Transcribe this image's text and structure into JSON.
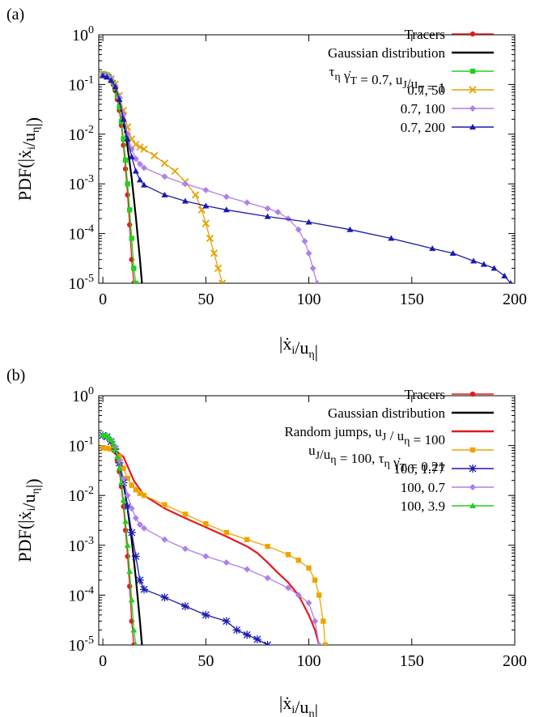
{
  "panels": [
    {
      "panel_label": "(a)",
      "ylabel": "PDF(|ẋi/uη|)",
      "xlabel": "|ẋi/uη|",
      "yticks": [
        "10-5",
        "10-4",
        "10-3",
        "10-2",
        "10-1",
        "100"
      ],
      "xticks": [
        "0",
        "50",
        "100",
        "150",
        "200"
      ],
      "legend": [
        "Tracers",
        "Gaussian distribution",
        "τη γ̇T = 0.7, uJ/uη = 1",
        "0.7, 50",
        "0.7, 100",
        "0.7, 200"
      ]
    },
    {
      "panel_label": "(b)",
      "ylabel": "PDF(|ẋi/uη|)",
      "xlabel": "|ẋi/uη|",
      "yticks": [
        "10-5",
        "10-4",
        "10-3",
        "10-2",
        "10-1",
        "100"
      ],
      "xticks": [
        "0",
        "50",
        "100",
        "150",
        "200"
      ],
      "legend": [
        "Tracers",
        "Gaussian distribution",
        "Random jumps, uJ / uη = 100",
        "uJ/uη = 100, τη γ̇T = 0.21",
        "100, 1.77",
        "100, 0.7",
        "100, 3.9"
      ]
    }
  ],
  "chart_data": [
    {
      "type": "line",
      "title": "",
      "panel": "(a)",
      "xlabel": "|ẋi/uη|",
      "ylabel": "PDF(|ẋi/uη|)",
      "xlim": [
        -2,
        200
      ],
      "ylim": [
        1e-05,
        1
      ],
      "yscale": "log",
      "grid": false,
      "legend_position": "top-right",
      "series": [
        {
          "name": "Tracers",
          "color": "#e41a1c",
          "marker": "circle",
          "x": [
            0,
            1,
            2,
            3,
            4,
            5,
            6,
            7,
            8,
            9,
            10,
            11,
            12,
            13,
            14,
            15
          ],
          "y": [
            0.16,
            0.155,
            0.15,
            0.14,
            0.12,
            0.1,
            0.075,
            0.05,
            0.03,
            0.015,
            0.006,
            0.002,
            0.0006,
            0.00015,
            3e-05,
            1e-05
          ]
        },
        {
          "name": "Gaussian distribution",
          "color": "#000000",
          "marker": "none",
          "x": [
            0,
            2,
            4,
            6,
            8,
            10,
            12,
            14,
            16,
            18,
            19
          ],
          "y": [
            0.16,
            0.15,
            0.12,
            0.08,
            0.045,
            0.018,
            0.0055,
            0.0013,
            0.00022,
            3e-05,
            1e-05
          ]
        },
        {
          "name": "τη γ̇T = 0.7, uJ/uη = 1",
          "color": "#1fd11f",
          "marker": "square",
          "x": [
            0,
            1,
            2,
            3,
            4,
            5,
            6,
            7,
            8,
            9,
            10,
            11,
            12,
            13,
            14,
            15,
            16
          ],
          "y": [
            0.165,
            0.16,
            0.155,
            0.145,
            0.13,
            0.11,
            0.085,
            0.06,
            0.035,
            0.018,
            0.008,
            0.003,
            0.001,
            0.0003,
            8e-05,
            2e-05,
            1e-05
          ]
        },
        {
          "name": "0.7, 50",
          "color": "#e8a100",
          "marker": "x",
          "x": [
            0,
            2,
            4,
            6,
            8,
            10,
            12,
            14,
            16,
            18,
            20,
            25,
            30,
            35,
            40,
            45,
            48,
            50,
            52,
            54,
            56,
            58
          ],
          "y": [
            0.16,
            0.15,
            0.13,
            0.1,
            0.06,
            0.03,
            0.014,
            0.008,
            0.0062,
            0.0055,
            0.005,
            0.0037,
            0.0026,
            0.0018,
            0.0011,
            0.0006,
            0.0003,
            0.00016,
            8e-05,
            4e-05,
            2e-05,
            1e-05
          ]
        },
        {
          "name": "0.7, 100",
          "color": "#b07fe8",
          "marker": "diamond",
          "x": [
            0,
            2,
            4,
            6,
            8,
            10,
            12,
            14,
            16,
            18,
            20,
            30,
            40,
            50,
            60,
            70,
            80,
            85,
            90,
            95,
            98,
            100,
            102,
            104
          ],
          "y": [
            0.16,
            0.15,
            0.13,
            0.095,
            0.055,
            0.025,
            0.01,
            0.005,
            0.0032,
            0.0025,
            0.0021,
            0.0014,
            0.001,
            0.00075,
            0.00055,
            0.00042,
            0.00032,
            0.00027,
            0.0002,
            0.00012,
            7e-05,
            4e-05,
            2e-05,
            1e-05
          ]
        },
        {
          "name": "0.7, 200",
          "color": "#1a1ab0",
          "marker": "triangle",
          "x": [
            0,
            2,
            4,
            6,
            8,
            10,
            12,
            14,
            16,
            18,
            20,
            30,
            40,
            50,
            60,
            80,
            100,
            120,
            140,
            160,
            170,
            180,
            185,
            190,
            195,
            198
          ],
          "y": [
            0.15,
            0.14,
            0.12,
            0.09,
            0.05,
            0.02,
            0.008,
            0.0035,
            0.0018,
            0.0012,
            0.00095,
            0.0006,
            0.00045,
            0.00036,
            0.0003,
            0.00022,
            0.00017,
            0.00012,
            8e-05,
            5e-05,
            4e-05,
            2.8e-05,
            2.4e-05,
            2e-05,
            1.4e-05,
            1e-05
          ]
        }
      ]
    },
    {
      "type": "line",
      "title": "",
      "panel": "(b)",
      "xlabel": "|ẋi/uη|",
      "ylabel": "PDF(|ẋi/uη|)",
      "xlim": [
        -2,
        200
      ],
      "ylim": [
        1e-05,
        1
      ],
      "yscale": "log",
      "grid": false,
      "legend_position": "top-right",
      "series": [
        {
          "name": "Tracers",
          "color": "#e41a1c",
          "marker": "circle",
          "x": [
            0,
            1,
            2,
            3,
            4,
            5,
            6,
            7,
            8,
            9,
            10,
            11,
            12,
            13,
            14,
            15
          ],
          "y": [
            0.16,
            0.155,
            0.15,
            0.14,
            0.12,
            0.1,
            0.075,
            0.05,
            0.03,
            0.015,
            0.006,
            0.002,
            0.0006,
            0.00015,
            3e-05,
            1e-05
          ]
        },
        {
          "name": "Gaussian distribution",
          "color": "#000000",
          "marker": "none",
          "x": [
            0,
            2,
            4,
            6,
            8,
            10,
            12,
            14,
            16,
            18,
            19
          ],
          "y": [
            0.16,
            0.15,
            0.12,
            0.08,
            0.045,
            0.018,
            0.0055,
            0.0013,
            0.00022,
            3e-05,
            1e-05
          ]
        },
        {
          "name": "Random jumps, uJ / uη = 100",
          "color": "#e41a1c",
          "marker": "none",
          "x": [
            0,
            5,
            10,
            15,
            20,
            30,
            40,
            50,
            60,
            70,
            75,
            80,
            85,
            90,
            95,
            100,
            103,
            105
          ],
          "y": [
            0.09,
            0.085,
            0.06,
            0.02,
            0.01,
            0.0055,
            0.0035,
            0.0023,
            0.0015,
            0.00095,
            0.0007,
            0.00045,
            0.00028,
            0.00018,
            0.0001,
            4e-05,
            2e-05,
            1e-05
          ]
        },
        {
          "name": "uJ/uη = 100, τη γ̇T = 0.21",
          "color": "#f0a300",
          "marker": "square",
          "x": [
            0,
            2,
            4,
            6,
            8,
            10,
            12,
            14,
            16,
            18,
            20,
            30,
            40,
            50,
            60,
            70,
            80,
            90,
            95,
            100,
            103,
            105,
            107,
            108
          ],
          "y": [
            0.09,
            0.088,
            0.085,
            0.08,
            0.06,
            0.035,
            0.022,
            0.016,
            0.013,
            0.011,
            0.01,
            0.0065,
            0.0042,
            0.0027,
            0.0018,
            0.0013,
            0.00095,
            0.00065,
            0.0005,
            0.00035,
            0.0002,
            0.0001,
            3e-05,
            1e-05
          ]
        },
        {
          "name": "100, 1.77",
          "color": "#1a1ab0",
          "marker": "star",
          "x": [
            0,
            2,
            4,
            6,
            8,
            10,
            12,
            14,
            16,
            18,
            20,
            30,
            40,
            50,
            60,
            65,
            70,
            75,
            80
          ],
          "y": [
            0.16,
            0.15,
            0.12,
            0.085,
            0.045,
            0.018,
            0.006,
            0.0018,
            0.0006,
            0.0002,
            0.00013,
            9e-05,
            6e-05,
            4e-05,
            3e-05,
            2e-05,
            1.6e-05,
            1.3e-05,
            1e-05
          ]
        },
        {
          "name": "100, 0.7",
          "color": "#b07fe8",
          "marker": "diamond",
          "x": [
            0,
            2,
            4,
            6,
            8,
            10,
            12,
            14,
            16,
            18,
            20,
            30,
            40,
            50,
            60,
            70,
            80,
            90,
            95,
            100,
            103,
            105
          ],
          "y": [
            0.16,
            0.15,
            0.13,
            0.095,
            0.05,
            0.022,
            0.01,
            0.0055,
            0.0035,
            0.0026,
            0.0022,
            0.0013,
            0.00085,
            0.0006,
            0.00045,
            0.00033,
            0.00022,
            0.00014,
            0.0001,
            7e-05,
            3e-05,
            1e-05
          ]
        },
        {
          "name": "100, 3.9",
          "color": "#1fd11f",
          "marker": "triangle",
          "x": [
            0,
            1,
            2,
            3,
            4,
            5,
            6,
            7,
            8,
            9,
            10,
            11,
            12,
            13,
            14,
            15,
            16
          ],
          "y": [
            0.165,
            0.16,
            0.155,
            0.145,
            0.13,
            0.11,
            0.085,
            0.06,
            0.035,
            0.018,
            0.008,
            0.003,
            0.001,
            0.0003,
            8e-05,
            2e-05,
            1e-05
          ]
        }
      ]
    }
  ]
}
